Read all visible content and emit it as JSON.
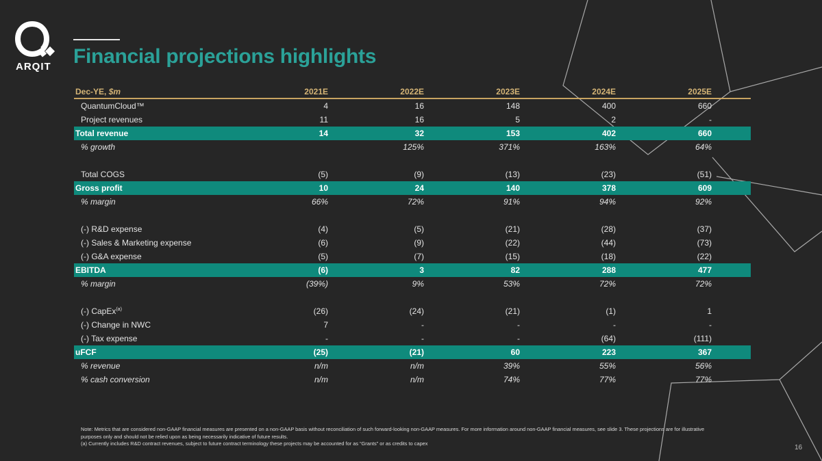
{
  "brand": {
    "logo_text": "ARQIT",
    "accent": "#2ba198"
  },
  "title": "Financial projections highlights",
  "table": {
    "header_label": "Dec-YE, ",
    "header_unit": "$m",
    "columns": [
      "2021E",
      "2022E",
      "2023E",
      "2024E",
      "2025E"
    ],
    "rows": [
      {
        "label": "QuantumCloud™",
        "values": [
          "4",
          "16",
          "148",
          "400",
          "660"
        ]
      },
      {
        "label": "Project revenues",
        "values": [
          "11",
          "16",
          "5",
          "2",
          "-"
        ]
      },
      {
        "label": "Total revenue",
        "values": [
          "14",
          "32",
          "153",
          "402",
          "660"
        ],
        "highlight": true
      },
      {
        "label": "% growth",
        "values": [
          "",
          "125%",
          "371%",
          "163%",
          "64%"
        ],
        "italic": true
      },
      {
        "spacer": true
      },
      {
        "label": "Total COGS",
        "values": [
          "(5)",
          "(9)",
          "(13)",
          "(23)",
          "(51)"
        ]
      },
      {
        "label": "Gross profit",
        "values": [
          "10",
          "24",
          "140",
          "378",
          "609"
        ],
        "highlight": true
      },
      {
        "label": "% margin",
        "values": [
          "66%",
          "72%",
          "91%",
          "94%",
          "92%"
        ],
        "italic": true
      },
      {
        "spacer": true
      },
      {
        "label": "(-) R&D expense",
        "values": [
          "(4)",
          "(5)",
          "(21)",
          "(28)",
          "(37)"
        ]
      },
      {
        "label": "(-) Sales & Marketing expense",
        "values": [
          "(6)",
          "(9)",
          "(22)",
          "(44)",
          "(73)"
        ]
      },
      {
        "label": "(-) G&A expense",
        "values": [
          "(5)",
          "(7)",
          "(15)",
          "(18)",
          "(22)"
        ]
      },
      {
        "label": "EBITDA",
        "values": [
          "(6)",
          "3",
          "82",
          "288",
          "477"
        ],
        "highlight": true
      },
      {
        "label": "% margin",
        "values": [
          "(39%)",
          "9%",
          "53%",
          "72%",
          "72%"
        ],
        "italic": true
      },
      {
        "spacer": true
      },
      {
        "label": "(-) CapEx",
        "sup": "(a)",
        "values": [
          "(26)",
          "(24)",
          "(21)",
          "(1)",
          "1"
        ]
      },
      {
        "label": "(-) Change in NWC",
        "values": [
          "7",
          "-",
          "-",
          "-",
          "-"
        ]
      },
      {
        "label": "(-) Tax expense",
        "values": [
          "-",
          "-",
          "-",
          "(64)",
          "(111)"
        ]
      },
      {
        "label": "uFCF",
        "values": [
          "(25)",
          "(21)",
          "60",
          "223",
          "367"
        ],
        "highlight": true
      },
      {
        "label": "% revenue",
        "values": [
          "n/m",
          "n/m",
          "39%",
          "55%",
          "56%"
        ],
        "italic": true
      },
      {
        "label": "% cash conversion",
        "values": [
          "n/m",
          "n/m",
          "74%",
          "77%",
          "77%"
        ],
        "italic": true
      }
    ]
  },
  "notes": {
    "line1": "Note: Metrics that are considered non-GAAP financial measures are presented on a non-GAAP basis without reconciliation of such forward-looking non-GAAP measures. For more information around non-GAAP financial measures, see slide 3. These projections are for illustrative purposes only and should not be relied upon as being necessarily indicative of future results.",
    "line2": "(a) Currently includes R&D contract revenues, subject to future contract terminology these projects may be accounted for as “Grants” or as credits to capex"
  },
  "page_number": "16"
}
